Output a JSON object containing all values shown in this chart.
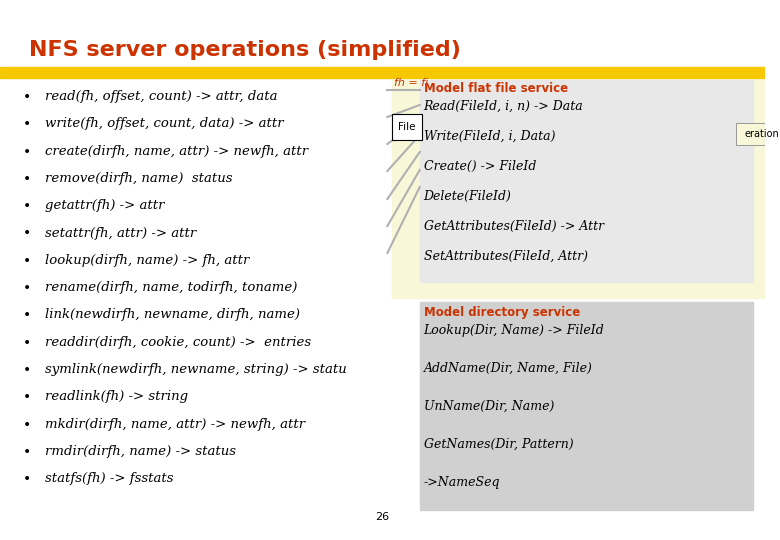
{
  "title": "NFS server operations (simplified)",
  "title_color": "#cc3300",
  "title_fontsize": 16,
  "bg_color": "#ffffff",
  "yellow_bar_color": "#f5c800",
  "bullet_items": [
    "read(fh, offset, count) -> attr, data",
    "write(fh, offset, count, data) -> attr",
    "create(dirfh, name, attr) -> newfh, attr",
    "remove(dirfh, name)  status",
    "getattr(fh) -> attr",
    "setattr(fh, attr) -> attr",
    "lookup(dirfh, name) -> fh, attr",
    "rename(dirfh, name, todirfh, toname)",
    "link(newdirfh, newname, dirfh, name)",
    "readdir(dirfh, cookie, count) ->  entries",
    "symlink(newdirfh, newname, string) -> statu",
    "readlink(fh) -> string",
    "mkdir(dirfh, name, attr) -> newfh, attr",
    "rmdir(dirfh, name) -> status",
    "statfs(fh) -> fsstats"
  ],
  "bullet_fontsize": 9.5,
  "fh_label": "fh = fi",
  "fh_color": "#cc3300",
  "box_label": "File",
  "flat_panel_light_color": "#f8f8d8",
  "flat_panel_gray_color": "#e8e8e8",
  "dir_panel_color": "#d0d0d0",
  "model_flat_title": "Model flat file service",
  "model_flat_color": "#cc3300",
  "model_flat_items": [
    "Read(FileId, i, n) -> Data",
    "Write(FileId, i, Data)",
    "Create() -> FileId",
    "Delete(FileId)",
    "GetAttributes(FileId) -> Attr",
    "SetAttributes(FileId, Attr)"
  ],
  "model_dir_title": "Model directory service",
  "model_dir_color": "#cc3300",
  "model_dir_items": [
    "Lookup(Dir, Name) -> FileId",
    "AddName(Dir, Name, File)",
    "UnName(Dir, Name)",
    "GetNames(Dir, Pattern)",
    "->NameSeq"
  ],
  "right_box_text": "eration",
  "page_number": "26",
  "arrow_color": "#b0b0b0",
  "black": "#000000"
}
